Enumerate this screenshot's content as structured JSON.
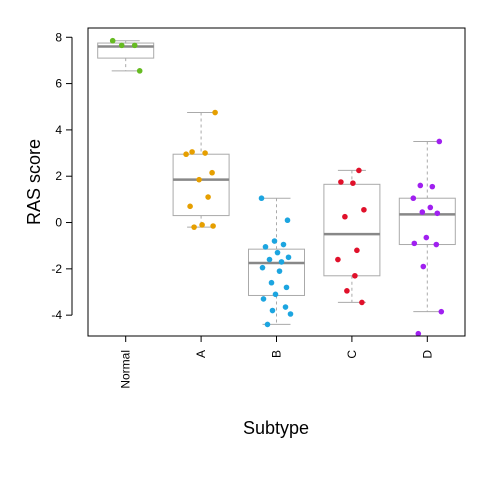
{
  "chart_data": {
    "type": "box",
    "xlabel": "Subtype",
    "ylabel": "RAS score",
    "ylim": [
      -4.9,
      8.4
    ],
    "yticks": [
      -4,
      -2,
      0,
      2,
      4,
      6,
      8
    ],
    "categories": [
      "Normal",
      "A",
      "B",
      "C",
      "D"
    ],
    "grid": false,
    "legend": "none",
    "boxes": [
      {
        "name": "Normal",
        "color": "#66BB22",
        "min": 6.55,
        "q1": 7.1,
        "median": 7.6,
        "q3": 7.75,
        "max": 7.85,
        "points": [
          7.85,
          7.65,
          7.65,
          6.55
        ]
      },
      {
        "name": "A",
        "color": "#E69F00",
        "min": -0.2,
        "q1": 0.3,
        "median": 1.85,
        "q3": 2.95,
        "max": 4.75,
        "points": [
          4.75,
          3.05,
          3.0,
          2.95,
          2.15,
          1.85,
          1.1,
          0.7,
          -0.1,
          -0.15,
          -0.2
        ]
      },
      {
        "name": "B",
        "color": "#1CA5E0",
        "min": -4.4,
        "q1": -3.15,
        "median": -1.75,
        "q3": -1.15,
        "max": 1.05,
        "points": [
          1.05,
          0.1,
          -0.8,
          -0.95,
          -1.05,
          -1.3,
          -1.5,
          -1.6,
          -1.7,
          -1.95,
          -2.1,
          -2.6,
          -2.8,
          -3.1,
          -3.3,
          -3.65,
          -3.8,
          -3.95,
          -4.4
        ]
      },
      {
        "name": "C",
        "color": "#E0102A",
        "min": -3.45,
        "q1": -2.3,
        "median": -0.5,
        "q3": 1.65,
        "max": 2.25,
        "points": [
          2.25,
          1.75,
          1.7,
          0.55,
          0.25,
          -1.2,
          -1.6,
          -2.3,
          -2.95,
          -3.45
        ]
      },
      {
        "name": "D",
        "color": "#A020F0",
        "min": -3.85,
        "q1": -0.95,
        "median": 0.35,
        "q3": 1.05,
        "max": 3.5,
        "points": [
          3.5,
          1.6,
          1.55,
          1.05,
          0.65,
          0.45,
          0.4,
          -0.65,
          -0.9,
          -0.95,
          -1.9,
          -3.85,
          -4.8
        ]
      }
    ]
  }
}
